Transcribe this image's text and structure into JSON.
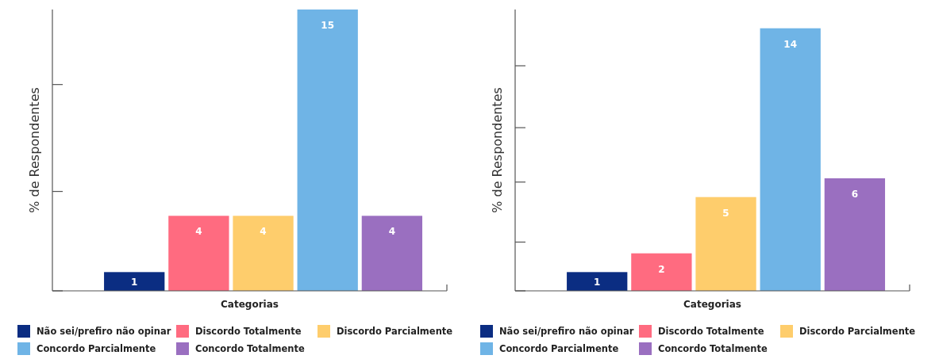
{
  "chart_data": [
    {
      "type": "bar",
      "xlabel": "Categorias",
      "ylabel": "% de Respondentes",
      "categories": [
        null
      ],
      "ylim": [
        0,
        15
      ],
      "yticks": [
        {
          "value": 0,
          "label": null
        },
        {
          "value": 5.3,
          "label": null
        },
        {
          "value": 11,
          "label": null
        }
      ],
      "data_labels": true,
      "legend": "bottom",
      "series": [
        {
          "name": "Não sei/prefiro não opinar",
          "color": "#0b2d82",
          "values": [
            1
          ]
        },
        {
          "name": "Discordo Totalmente",
          "color": "#ff6b80",
          "values": [
            4
          ]
        },
        {
          "name": "Discordo Parcialmente",
          "color": "#fecd6c",
          "values": [
            4
          ]
        },
        {
          "name": "Concordo Parcialmente",
          "color": "#6fb4e6",
          "values": [
            15
          ]
        },
        {
          "name": "Concordo Totalmente",
          "color": "#9a6fc0",
          "values": [
            4
          ]
        }
      ]
    },
    {
      "type": "bar",
      "xlabel": "Categorias",
      "ylabel": "% de Respondentes",
      "categories": [
        null
      ],
      "ylim": [
        0,
        15
      ],
      "yticks": [
        {
          "value": 0,
          "label": null
        },
        {
          "value": 2.6,
          "label": null
        },
        {
          "value": 5.8,
          "label": null
        },
        {
          "value": 8.7,
          "label": null
        },
        {
          "value": 12,
          "label": null
        }
      ],
      "data_labels": true,
      "legend": "bottom",
      "series": [
        {
          "name": "Não sei/prefiro não opinar",
          "color": "#0b2d82",
          "values": [
            1
          ]
        },
        {
          "name": "Discordo Totalmente",
          "color": "#ff6b80",
          "values": [
            2
          ]
        },
        {
          "name": "Discordo Parcialmente",
          "color": "#fecd6c",
          "values": [
            5
          ]
        },
        {
          "name": "Concordo Parcialmente",
          "color": "#6fb4e6",
          "values": [
            14
          ]
        },
        {
          "name": "Concordo Totalmente",
          "color": "#9a6fc0",
          "values": [
            6
          ]
        }
      ]
    }
  ]
}
